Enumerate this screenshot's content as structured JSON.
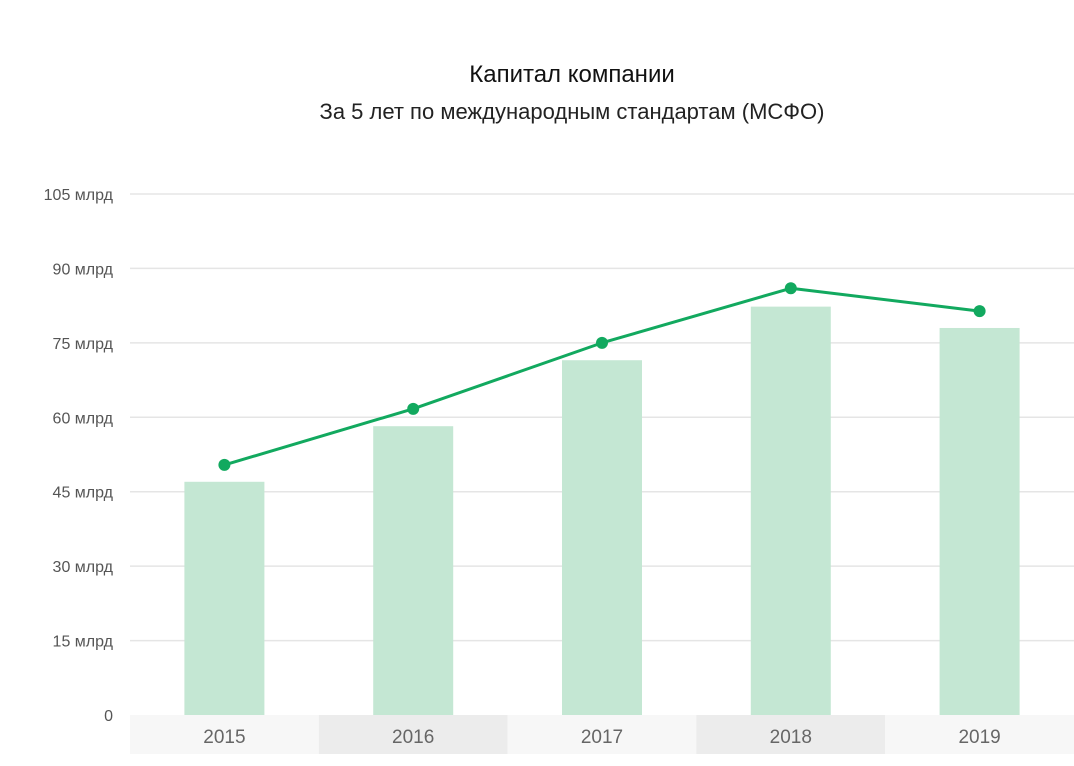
{
  "chart_data": {
    "type": "bar",
    "title": "Капитал компании",
    "subtitle": "За 5 лет по международным стандартам (МСФО)",
    "xlabel": "",
    "ylabel": "",
    "categories": [
      "2015",
      "2016",
      "2017",
      "2018",
      "2019"
    ],
    "series": [
      {
        "type": "bar",
        "values": [
          47.0,
          58.2,
          71.5,
          82.3,
          78.0
        ]
      },
      {
        "type": "line",
        "values": [
          50.4,
          61.7,
          75.0,
          86.0,
          81.4
        ]
      }
    ],
    "ylim": [
      0,
      105
    ],
    "yticks": [
      0,
      15,
      30,
      45,
      60,
      75,
      90,
      105
    ],
    "ytick_labels": [
      "0",
      "15 млрд",
      "30 млрд",
      "45 млрд",
      "60 млрд",
      "75 млрд",
      "90 млрд",
      "105 млрд"
    ],
    "grid": true,
    "colors": {
      "bar": "#c4e7d3",
      "line": "#12a95f",
      "grid": "#e5e5e5",
      "band_light": "#f7f7f7",
      "band_dark": "#ececec"
    }
  }
}
